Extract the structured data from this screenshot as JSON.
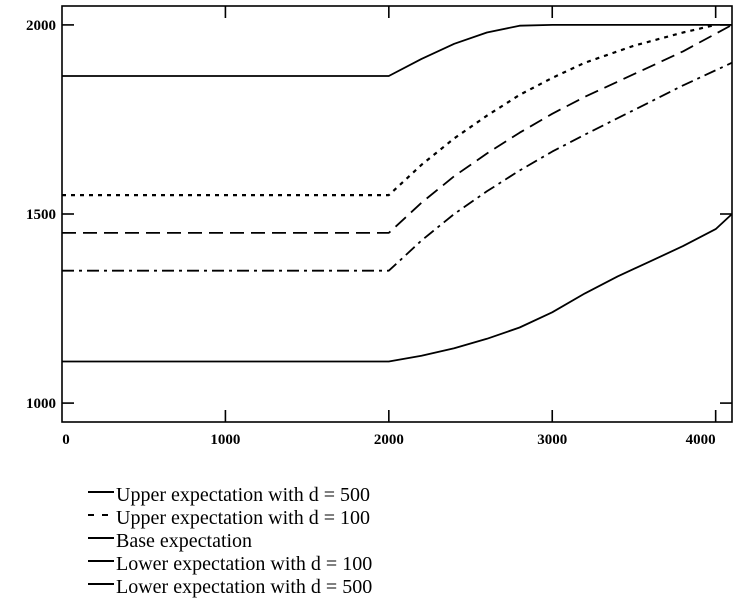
{
  "chart_data": {
    "type": "line",
    "title": "",
    "xlabel": "",
    "ylabel": "",
    "xlim": [
      0,
      4100
    ],
    "ylim": [
      950,
      2050
    ],
    "x_ticks": [
      0,
      1000,
      2000,
      3000,
      4000
    ],
    "y_ticks": [
      1000,
      1500,
      2000
    ],
    "x_tick_labels": [
      "0",
      "1000",
      "2000",
      "3000",
      "4000"
    ],
    "y_tick_labels": [
      "1000",
      "1500",
      "2000"
    ],
    "grid": false,
    "legend_position": "below",
    "series": [
      {
        "name": "Upper expectation with d = 500",
        "style": "solid",
        "x": [
          0,
          2000,
          2200,
          2400,
          2600,
          2800,
          3000,
          3500,
          4100
        ],
        "y": [
          1865,
          1865,
          1910,
          1950,
          1980,
          1998,
          2000,
          2000,
          2000
        ]
      },
      {
        "name": "Upper expectation with d = 100",
        "style": "dotted",
        "x": [
          0,
          2000,
          2100,
          2200,
          2400,
          2600,
          2800,
          3000,
          3200,
          3500,
          3800,
          4000
        ],
        "y": [
          1550,
          1550,
          1590,
          1630,
          1700,
          1760,
          1815,
          1860,
          1900,
          1945,
          1980,
          2000
        ]
      },
      {
        "name": "Base expectation",
        "style": "dashed",
        "x": [
          0,
          2000,
          2100,
          2200,
          2400,
          2600,
          2800,
          3000,
          3200,
          3500,
          3800,
          4100
        ],
        "y": [
          1450,
          1450,
          1490,
          1530,
          1600,
          1660,
          1715,
          1765,
          1810,
          1870,
          1930,
          2000
        ]
      },
      {
        "name": "Lower expectation with d = 100",
        "style": "dashdot",
        "x": [
          0,
          2000,
          2100,
          2200,
          2400,
          2600,
          2800,
          3000,
          3200,
          3500,
          3800,
          4100
        ],
        "y": [
          1350,
          1350,
          1390,
          1430,
          1500,
          1560,
          1615,
          1665,
          1710,
          1775,
          1840,
          1900
        ]
      },
      {
        "name": "Lower expectation with d = 500",
        "style": "solid",
        "x": [
          0,
          2000,
          2200,
          2400,
          2600,
          2800,
          3000,
          3200,
          3400,
          3600,
          3800,
          4000,
          4100
        ],
        "y": [
          1110,
          1110,
          1125,
          1145,
          1170,
          1200,
          1240,
          1290,
          1335,
          1375,
          1415,
          1460,
          1500
        ]
      }
    ]
  }
}
